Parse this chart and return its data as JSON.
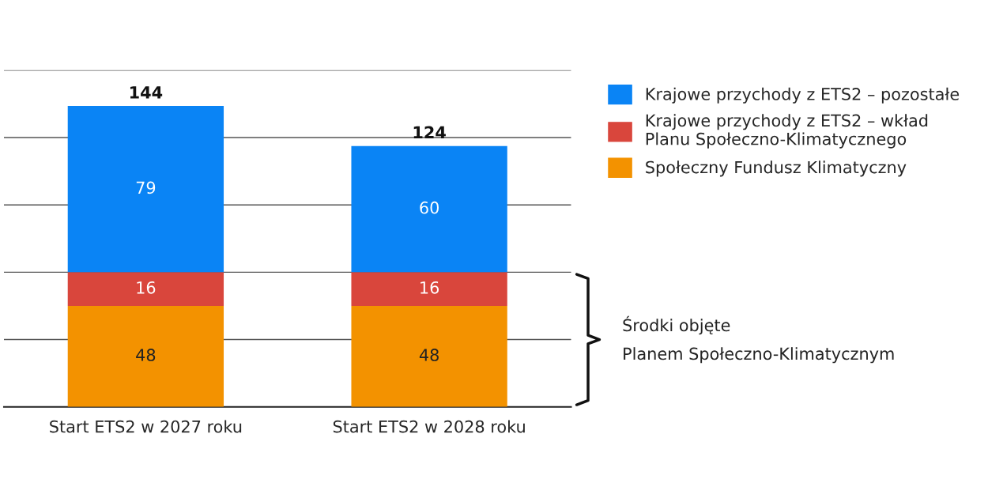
{
  "chart_data": {
    "type": "bar",
    "stacked": true,
    "categories": [
      "Start ETS2 w 2027 roku",
      "Start ETS2 w 2028 roku"
    ],
    "series": [
      {
        "name": "Społeczny Fundusz Klimatyczny",
        "color": "#f39200",
        "values": [
          48,
          48
        ]
      },
      {
        "name": "Krajowe przychody z ETS2 – wkład\nPlanu Społeczno-Klimatycznego",
        "color": "#d9463c",
        "values": [
          16,
          16
        ]
      },
      {
        "name": "Krajowe przychody z ETS2 – pozostałe",
        "color": "#0a84f5",
        "values": [
          79,
          60
        ]
      }
    ],
    "totals": [
      "144",
      "124"
    ],
    "data_labels": true,
    "ylim": [
      0,
      160
    ],
    "yticks": [
      {
        "value": 0,
        "label": null
      },
      {
        "value": 32,
        "label": null
      },
      {
        "value": 64,
        "label": null
      },
      {
        "value": 96,
        "label": null
      },
      {
        "value": 128,
        "label": null
      },
      {
        "value": 160,
        "label": null
      }
    ],
    "tick_labels": "x",
    "grid": "y",
    "legend": "right",
    "annotations": [
      "Środki objęte\nPlanem Społeczno-Klimatycznym"
    ]
  }
}
